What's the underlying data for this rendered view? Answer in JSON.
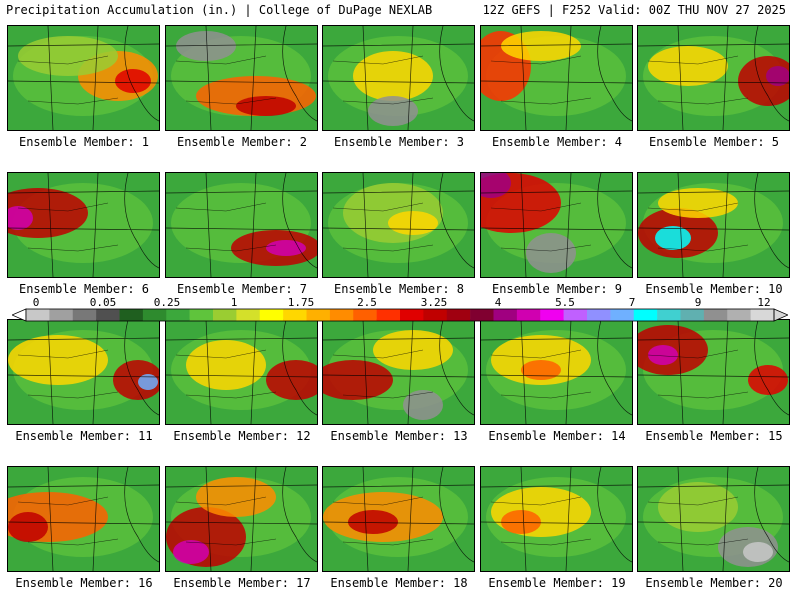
{
  "header": {
    "left": "Precipitation Accumulation (in.) | College of DuPage NEXLAB",
    "right": "12Z GEFS | F252 Valid: 00Z THU NOV 27 2025"
  },
  "panels": [
    {
      "label": "Ensemble Member: 1"
    },
    {
      "label": "Ensemble Member: 2"
    },
    {
      "label": "Ensemble Member: 3"
    },
    {
      "label": "Ensemble Member: 4"
    },
    {
      "label": "Ensemble Member: 5"
    },
    {
      "label": "Ensemble Member: 6"
    },
    {
      "label": "Ensemble Member: 7"
    },
    {
      "label": "Ensemble Member: 8"
    },
    {
      "label": "Ensemble Member: 9"
    },
    {
      "label": "Ensemble Member: 10"
    },
    {
      "label": "Ensemble Member: 11"
    },
    {
      "label": "Ensemble Member: 12"
    },
    {
      "label": "Ensemble Member: 13"
    },
    {
      "label": "Ensemble Member: 14"
    },
    {
      "label": "Ensemble Member: 15"
    },
    {
      "label": "Ensemble Member: 16"
    },
    {
      "label": "Ensemble Member: 17"
    },
    {
      "label": "Ensemble Member: 18"
    },
    {
      "label": "Ensemble Member: 19"
    },
    {
      "label": "Ensemble Member: 20"
    }
  ],
  "colorbar": {
    "tick_labels": [
      "0",
      "0.05",
      "0.25",
      "1",
      "1.75",
      "2.5",
      "3.25",
      "4",
      "5.5",
      "7",
      "9",
      "12"
    ],
    "colors": [
      "#c8c8c8",
      "#a0a0a0",
      "#787878",
      "#505050",
      "#1f5f1f",
      "#2e8b2e",
      "#3ca83c",
      "#5fc43c",
      "#9acd32",
      "#d4e02a",
      "#ffff00",
      "#ffd700",
      "#ffb000",
      "#ff8c00",
      "#ff6000",
      "#ff3000",
      "#e00000",
      "#c00000",
      "#a00010",
      "#800030",
      "#a00080",
      "#d000b0",
      "#f000f0",
      "#c060ff",
      "#9090ff",
      "#6fb0ff",
      "#00ffff",
      "#40d0d0",
      "#60b0b0",
      "#909090",
      "#b0b0b0",
      "#d8d8d8"
    ]
  }
}
